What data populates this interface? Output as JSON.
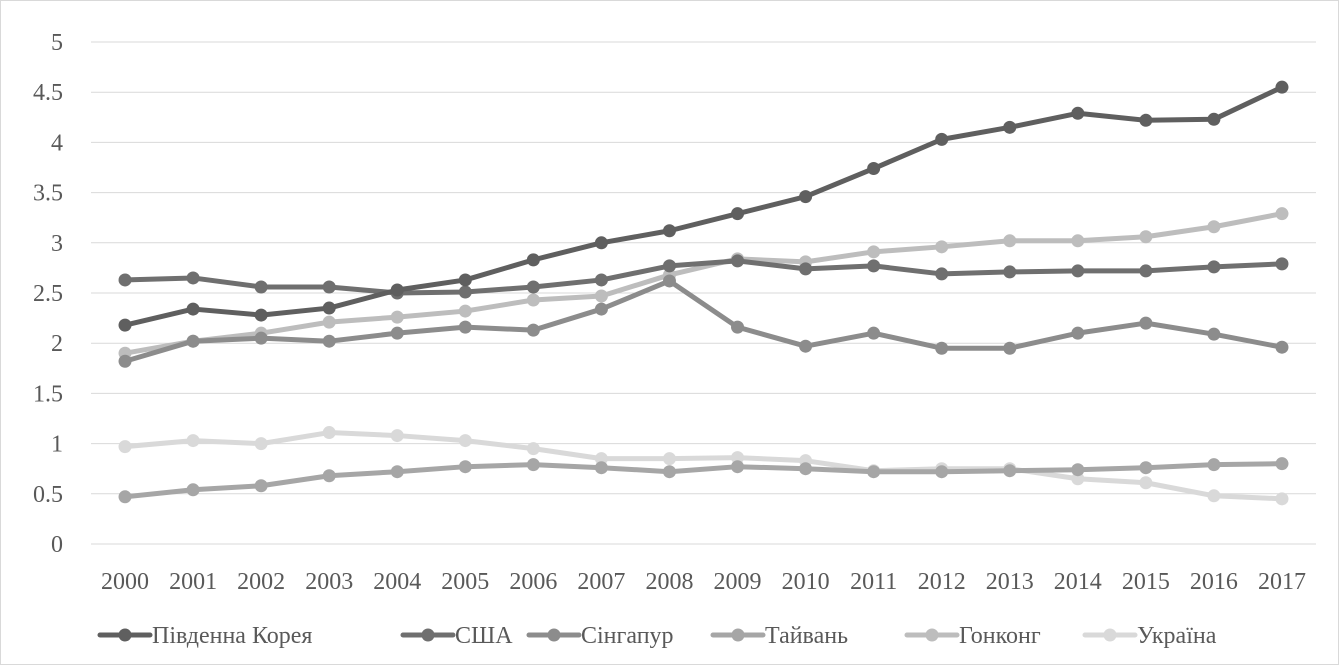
{
  "chart_data": {
    "type": "line",
    "title": "",
    "xlabel": "",
    "ylabel": "",
    "ylim": [
      0,
      5
    ],
    "yticks": [
      0,
      0.5,
      1,
      1.5,
      2,
      2.5,
      3,
      3.5,
      4,
      4.5,
      5
    ],
    "ytick_labels": [
      "0",
      "0.5",
      "1",
      "1.5",
      "2",
      "2.5",
      "3",
      "3.5",
      "4",
      "4.5",
      "5"
    ],
    "grid": true,
    "legend_position": "bottom",
    "categories": [
      "2000",
      "2001",
      "2002",
      "2003",
      "2004",
      "2005",
      "2006",
      "2007",
      "2008",
      "2009",
      "2010",
      "2011",
      "2012",
      "2013",
      "2014",
      "2015",
      "2016",
      "2017"
    ],
    "series": [
      {
        "name": "Південна Корея",
        "color": "#5f5f5f",
        "values": [
          2.18,
          2.34,
          2.28,
          2.35,
          2.53,
          2.63,
          2.83,
          3.0,
          3.12,
          3.29,
          3.46,
          3.74,
          4.03,
          4.15,
          4.29,
          4.22,
          4.23,
          4.55
        ]
      },
      {
        "name": "США",
        "color": "#6f6f6f",
        "values": [
          2.63,
          2.65,
          2.56,
          2.56,
          2.5,
          2.51,
          2.56,
          2.63,
          2.77,
          2.82,
          2.74,
          2.77,
          2.69,
          2.71,
          2.72,
          2.72,
          2.76,
          2.79
        ]
      },
      {
        "name": "Сінгапур",
        "color": "#8c8c8c",
        "values": [
          1.82,
          2.02,
          2.05,
          2.02,
          2.1,
          2.16,
          2.13,
          2.34,
          2.62,
          2.16,
          1.97,
          2.1,
          1.95,
          1.95,
          2.1,
          2.2,
          2.09,
          1.96
        ]
      },
      {
        "name": "Тайвань",
        "color": "#a6a6a6",
        "values": [
          0.47,
          0.54,
          0.58,
          0.68,
          0.72,
          0.77,
          0.79,
          0.76,
          0.72,
          0.77,
          0.75,
          0.72,
          0.72,
          0.73,
          0.74,
          0.76,
          0.79,
          0.8
        ]
      },
      {
        "name": "Гонконг",
        "color": "#bdbdbd",
        "values": [
          1.9,
          2.02,
          2.1,
          2.21,
          2.26,
          2.32,
          2.43,
          2.47,
          2.68,
          2.84,
          2.81,
          2.91,
          2.96,
          3.02,
          3.02,
          3.06,
          3.16,
          3.29
        ]
      },
      {
        "name": "Україна",
        "color": "#d9d9d9",
        "values": [
          0.97,
          1.03,
          1.0,
          1.11,
          1.08,
          1.03,
          0.95,
          0.85,
          0.85,
          0.86,
          0.83,
          0.73,
          0.75,
          0.75,
          0.65,
          0.61,
          0.48,
          0.45
        ]
      }
    ]
  }
}
